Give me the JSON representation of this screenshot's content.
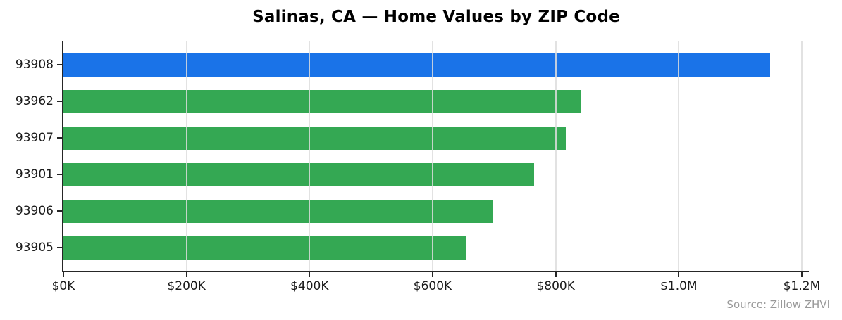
{
  "title": "Salinas, CA — Home Values by ZIP Code",
  "source_note": "Source: Zillow ZHVI",
  "chart_data": {
    "type": "bar",
    "orientation": "horizontal",
    "title": "Salinas, CA — Home Values by ZIP Code",
    "xlabel": "",
    "ylabel": "",
    "categories": [
      "93908",
      "93962",
      "93907",
      "93901",
      "93906",
      "93905"
    ],
    "values": [
      1148000,
      841000,
      816000,
      765000,
      699000,
      654000
    ],
    "xlim": [
      0,
      1200000
    ],
    "x_tick_values": [
      0,
      200000,
      400000,
      600000,
      800000,
      1000000,
      1200000
    ],
    "x_tick_labels": [
      "$0K",
      "$200K",
      "$400K",
      "$600K",
      "$800K",
      "$1.0M",
      "$1.2M"
    ],
    "grid": true,
    "gridline_color": "#dddddd",
    "legend": "none",
    "highlight_category": "93908",
    "colors": {
      "highlight": "#1a73e8",
      "default": "#34a853"
    },
    "annotation": "Source: Zillow ZHVI"
  }
}
